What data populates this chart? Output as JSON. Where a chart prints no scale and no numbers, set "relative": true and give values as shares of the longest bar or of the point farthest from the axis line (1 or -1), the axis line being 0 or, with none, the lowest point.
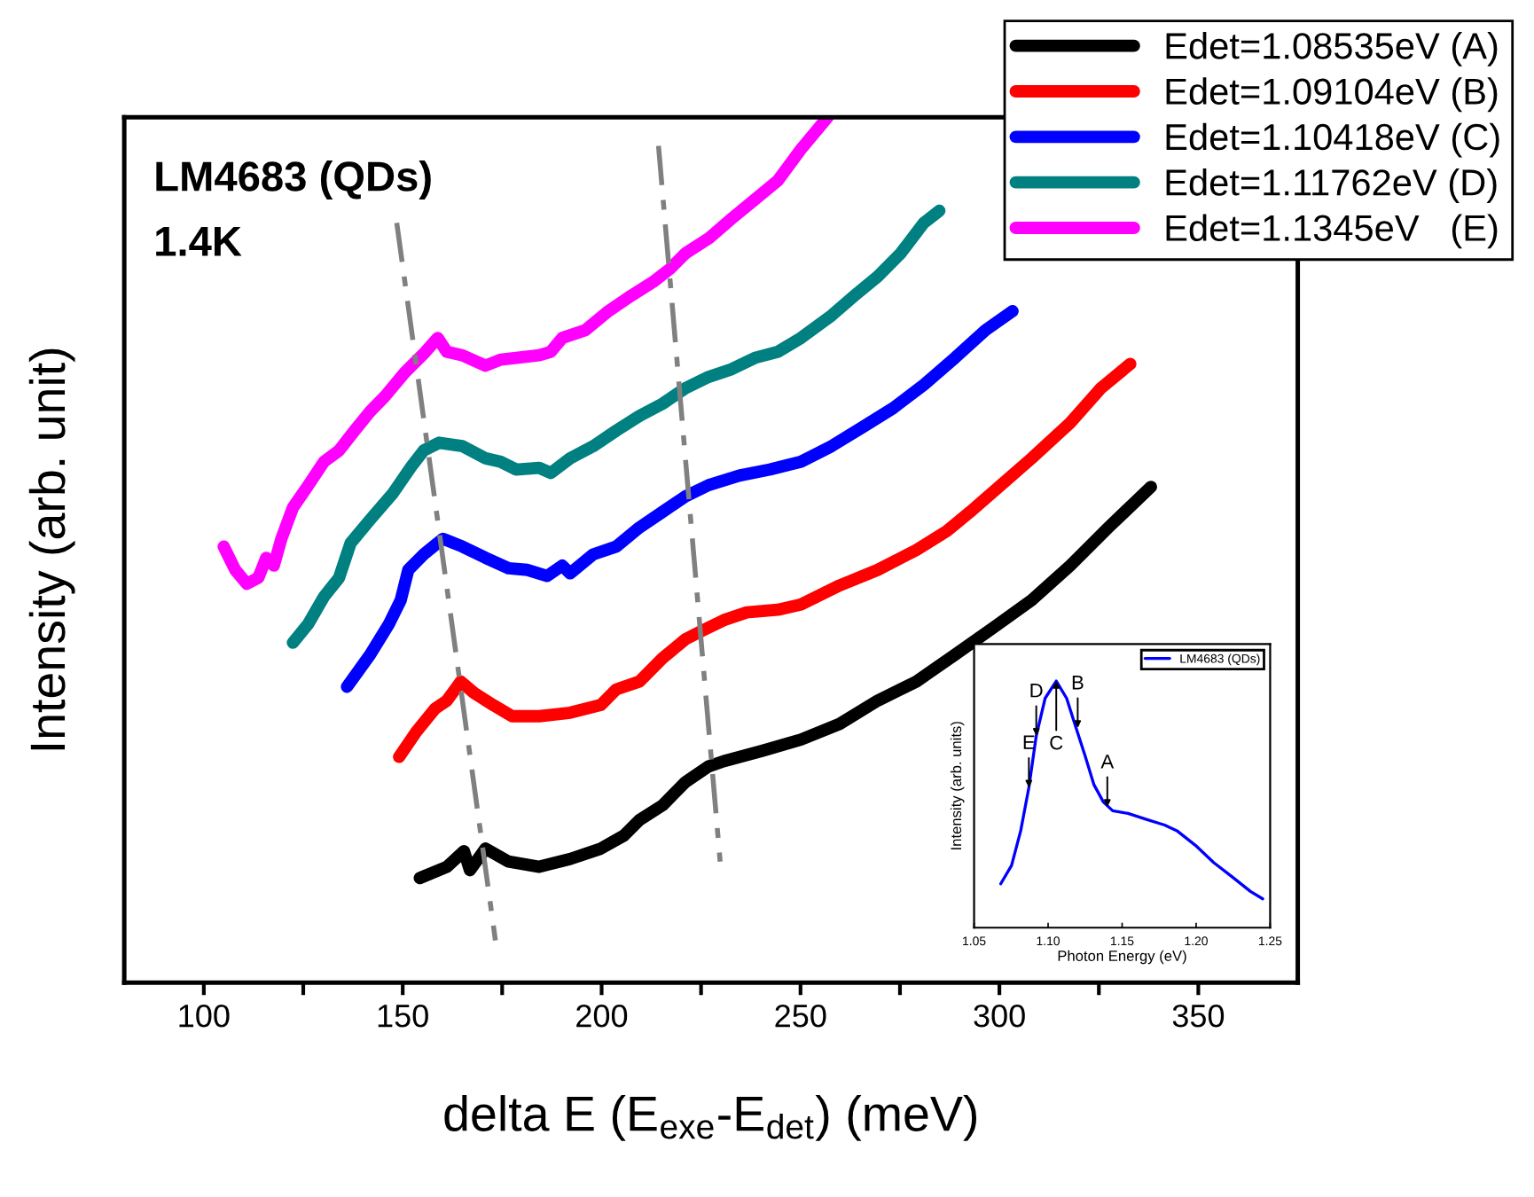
{
  "chart_data": [
    {
      "type": "line",
      "xlabel": "delta E (E$_{exe}$-E$_{det}$) (meV)",
      "ylabel": "Intensity (arb. unit)",
      "relative": true,
      "legend": "top right",
      "xlim": [
        80,
        375
      ],
      "xticks": [
        100,
        {
          "value": 125,
          "label": null
        },
        150,
        {
          "value": 175,
          "label": null
        },
        200,
        {
          "value": 225,
          "label": null
        },
        250,
        {
          "value": 275,
          "label": null
        },
        300,
        {
          "value": 325,
          "label": null
        },
        350
      ],
      "annotations": [
        "LM4683 (QDs)",
        "1.4K"
      ],
      "series": [
        {
          "name": "Edet=1.08535eV (A)",
          "color": "#000000",
          "x": [
            154.3,
            161.1,
            165.4,
            166.9,
            170.8,
            176.6,
            184.3,
            192.1,
            199.8,
            205.6,
            209.5,
            215.3,
            221.1,
            226.9,
            230.7,
            240.4,
            250.1,
            259.8,
            269.4,
            279.1,
            288.8,
            298.4,
            308.1,
            317.8,
            327.4,
            338.1
          ],
          "values": [
            0.121,
            0.134,
            0.152,
            0.13,
            0.155,
            0.14,
            0.134,
            0.143,
            0.155,
            0.17,
            0.188,
            0.205,
            0.232,
            0.25,
            0.256,
            0.268,
            0.281,
            0.299,
            0.326,
            0.348,
            0.379,
            0.41,
            0.442,
            0.482,
            0.526,
            0.573
          ]
        },
        {
          "name": "Edet=1.09104eV (B)",
          "color": "#ff0000",
          "x": [
            149.1,
            153.4,
            158.2,
            161.1,
            164.6,
            167.9,
            172.7,
            177.5,
            184.3,
            192.1,
            199.8,
            203.7,
            209.5,
            215.3,
            221.1,
            224.9,
            230.7,
            236.5,
            244.3,
            250.1,
            259.8,
            269.4,
            279.1,
            286.8,
            292.6,
            300.4,
            308.1,
            317.8,
            325.5,
            332.9
          ],
          "values": [
            0.261,
            0.29,
            0.317,
            0.326,
            0.348,
            0.335,
            0.321,
            0.308,
            0.308,
            0.312,
            0.321,
            0.339,
            0.348,
            0.375,
            0.397,
            0.406,
            0.419,
            0.428,
            0.431,
            0.437,
            0.459,
            0.477,
            0.5,
            0.522,
            0.544,
            0.575,
            0.606,
            0.647,
            0.687,
            0.715
          ]
        },
        {
          "name": "Edet=1.10418eV (C)",
          "color": "#0000ff",
          "x": [
            136.0,
            141.8,
            146.6,
            149.5,
            151.4,
            155.3,
            160.1,
            165.0,
            170.8,
            176.6,
            181.4,
            186.3,
            190.1,
            192.1,
            197.9,
            203.7,
            209.5,
            215.3,
            221.1,
            226.9,
            234.6,
            242.3,
            250.1,
            257.8,
            265.6,
            273.3,
            281.0,
            288.8,
            296.5,
            303.3
          ],
          "values": [
            0.342,
            0.379,
            0.415,
            0.442,
            0.477,
            0.495,
            0.513,
            0.504,
            0.491,
            0.479,
            0.477,
            0.47,
            0.482,
            0.473,
            0.495,
            0.504,
            0.526,
            0.544,
            0.562,
            0.575,
            0.586,
            0.593,
            0.602,
            0.62,
            0.642,
            0.664,
            0.691,
            0.722,
            0.754,
            0.776
          ]
        },
        {
          "name": "Edet=1.11762eV (D)",
          "color": "#008080",
          "x": [
            122.4,
            126.3,
            130.2,
            134.0,
            136.9,
            141.8,
            147.6,
            152.4,
            155.3,
            159.2,
            165.0,
            170.8,
            174.6,
            178.5,
            184.3,
            187.2,
            192.1,
            197.9,
            203.7,
            209.5,
            215.3,
            221.1,
            226.9,
            232.7,
            238.5,
            244.3,
            250.1,
            257.8,
            263.6,
            269.4,
            275.2,
            281.0,
            284.9
          ],
          "values": [
            0.393,
            0.415,
            0.446,
            0.468,
            0.508,
            0.535,
            0.566,
            0.598,
            0.615,
            0.624,
            0.62,
            0.606,
            0.602,
            0.593,
            0.595,
            0.589,
            0.606,
            0.62,
            0.638,
            0.655,
            0.669,
            0.687,
            0.7,
            0.709,
            0.722,
            0.729,
            0.745,
            0.771,
            0.794,
            0.816,
            0.843,
            0.878,
            0.892
          ]
        },
        {
          "name": "Edet=1.1345eV   (E)",
          "color": "#ff00ff",
          "x": [
            105.0,
            107.9,
            110.8,
            113.7,
            115.7,
            117.6,
            119.5,
            122.4,
            126.3,
            130.2,
            134.0,
            137.9,
            141.8,
            145.6,
            150.5,
            155.3,
            158.8,
            161.1,
            165.0,
            170.8,
            174.6,
            178.5,
            184.3,
            187.2,
            190.1,
            195.9,
            201.7,
            207.5,
            213.3,
            217.2,
            221.1,
            226.9,
            232.7,
            238.5,
            244.3,
            250.1,
            256.8
          ],
          "values": [
            0.504,
            0.477,
            0.461,
            0.468,
            0.491,
            0.482,
            0.513,
            0.549,
            0.575,
            0.602,
            0.615,
            0.638,
            0.66,
            0.678,
            0.705,
            0.727,
            0.745,
            0.729,
            0.725,
            0.713,
            0.72,
            0.722,
            0.725,
            0.729,
            0.745,
            0.754,
            0.776,
            0.794,
            0.811,
            0.825,
            0.843,
            0.86,
            0.883,
            0.905,
            0.927,
            0.963,
            1.0
          ]
        },
        {
          "color": "#808080",
          "line_style": "dashed",
          "x": [
            148.5,
            173.3
          ],
          "values": [
            0.878,
            0.049
          ]
        },
        {
          "color": "#808080",
          "line_style": "dashed",
          "x": [
            214.3,
            229.8
          ],
          "values": [
            0.967,
            0.14
          ]
        }
      ]
    },
    {
      "type": "line",
      "xlabel": "Photon Energy (eV)",
      "ylabel": "Intensity (arb. units)",
      "relative": true,
      "legend": "top right",
      "xlim": [
        1.05,
        1.25
      ],
      "xticks": [
        {
          "value": 1.05,
          "label": "1.05"
        },
        {
          "value": 1.1,
          "label": "1.10"
        },
        {
          "value": 1.15,
          "label": "1.15"
        },
        {
          "value": 1.2,
          "label": "1.20"
        },
        {
          "value": 1.25,
          "label": "1.25"
        }
      ],
      "annotations": [
        {
          "text": "E",
          "x": 1.087,
          "y": 0.568
        },
        {
          "text": "D",
          "x": 1.092,
          "y": 0.778
        },
        {
          "text": "C",
          "x": 1.1055,
          "y": 1.0
        },
        {
          "text": "B",
          "x": 1.12,
          "y": 0.81
        },
        {
          "text": "A",
          "x": 1.14,
          "y": 0.49
        }
      ],
      "series": [
        {
          "name": "LM4683 (QDs)",
          "color": "#0000ff",
          "x": [
            1.068,
            1.0753,
            1.0815,
            1.087,
            1.092,
            1.098,
            1.1055,
            1.1125,
            1.1187,
            1.125,
            1.131,
            1.1374,
            1.1436,
            1.154,
            1.1664,
            1.1787,
            1.187,
            1.1995,
            1.2118,
            1.2243,
            1.2367,
            1.245
          ],
          "values": [
            0.178,
            0.252,
            0.393,
            0.568,
            0.778,
            0.93,
            1.0,
            0.93,
            0.813,
            0.696,
            0.579,
            0.509,
            0.474,
            0.463,
            0.439,
            0.416,
            0.393,
            0.334,
            0.264,
            0.206,
            0.147,
            0.117
          ]
        }
      ]
    }
  ]
}
